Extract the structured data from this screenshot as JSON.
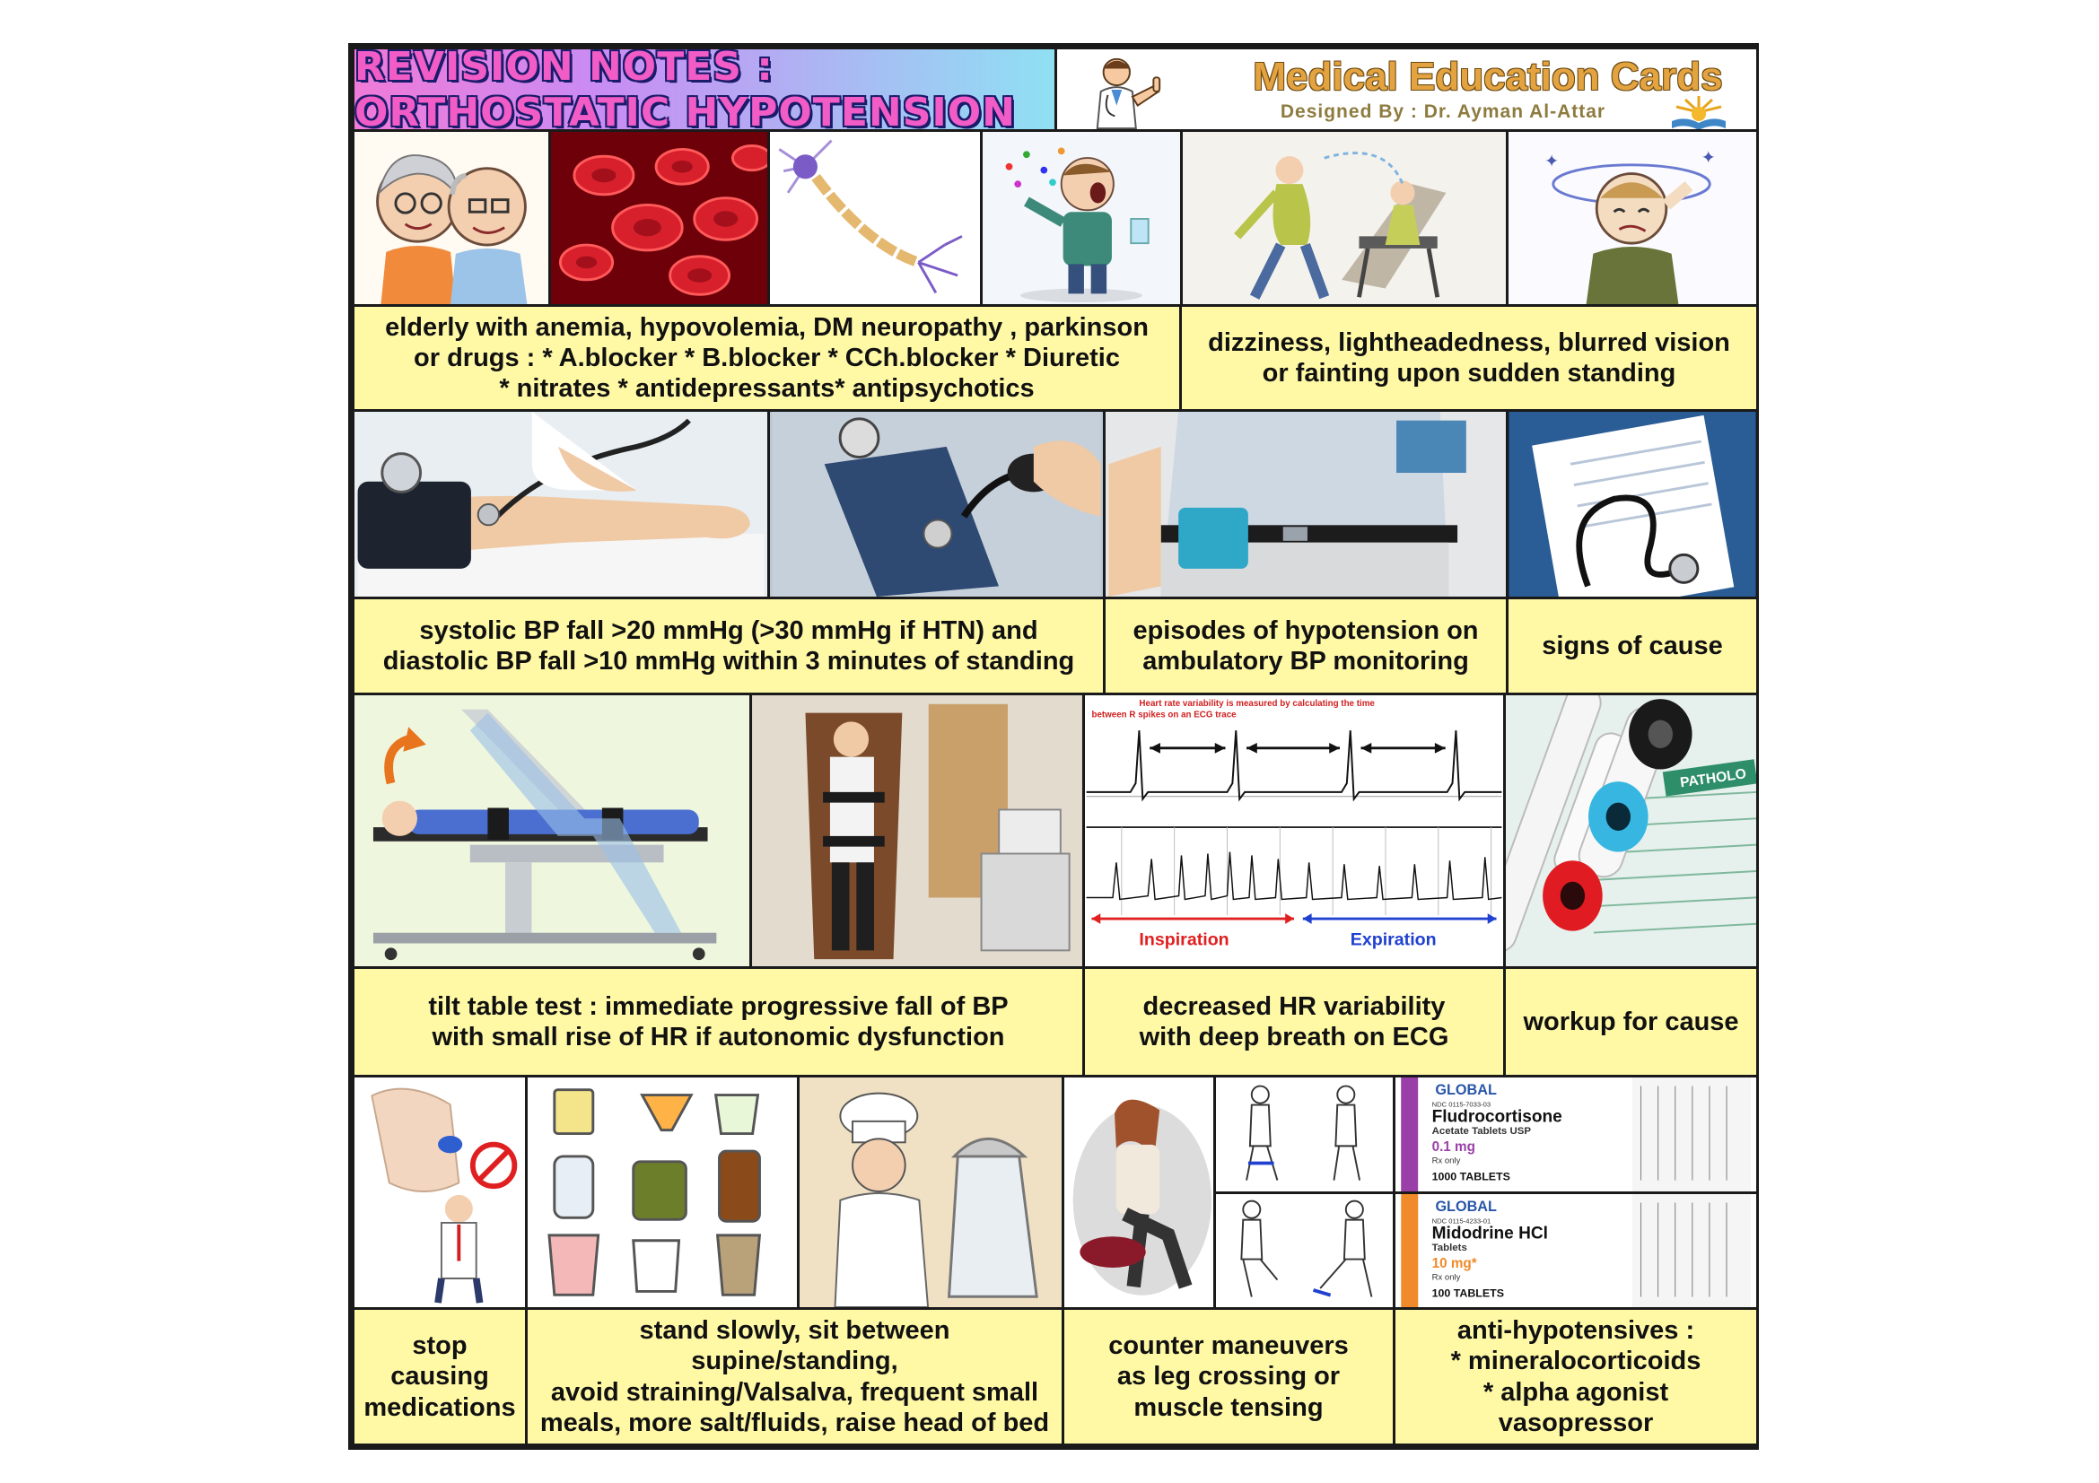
{
  "header": {
    "title": "REVISION NOTES : ORTHOSTATIC HYPOTENSION",
    "brand_title": "Medical Education Cards",
    "brand_subtitle": "Designed By : Dr. Ayman Al-Attar"
  },
  "row1": {
    "risk_text": "elderly with anemia, hypovolemia, DM neuropathy , parkinson\nor drugs : * A.blocker * B.blocker * CCh.blocker * Diuretic\n* nitrates * antidepressants* antipsychotics",
    "symptoms_text": "dizziness, lightheadedness, blurred vision\nor fainting upon sudden standing"
  },
  "row2": {
    "bp_criteria_text": "systolic BP fall >20 mmHg (>30 mmHg if HTN) and\ndiastolic BP fall >10 mmHg within 3 minutes of standing",
    "ambulatory_text": "episodes of hypotension on\nambulatory BP monitoring",
    "signs_text": "signs of cause"
  },
  "row3": {
    "tilt_text": "tilt table test : immediate progressive fall of BP\nwith small rise of HR if autonomic dysfunction",
    "hrv_text": "decreased HR variability\nwith deep breath on ECG",
    "workup_text": "workup for cause",
    "ecg": {
      "caption": "Heart rate variability is measured by calculating the time\nbetween R spikes on an ECG trace",
      "inspiration": "Inspiration",
      "expiration": "Expiration"
    },
    "tube_label": "PATHOLO"
  },
  "row4": {
    "stop_text": "stop\ncausing\nmedications",
    "lifestyle_text": "stand slowly, sit between supine/standing,\navoid straining/Valsalva, frequent small\nmeals, more salt/fluids, raise head of bed",
    "counter_text": "counter maneuvers\nas leg crossing or\nmuscle tensing",
    "antihypo_text": "anti-hypotensives :\n* mineralocorticoids\n* alpha agonist vasopressor",
    "drug1": {
      "brand": "GLOBAL",
      "ndc": "NDC 0115-7033-03",
      "name": "Fludrocortisone",
      "desc": "Acetate Tablets USP",
      "dose": "0.1 mg",
      "rx": "Rx only",
      "count": "1000 TABLETS"
    },
    "drug2": {
      "brand": "GLOBAL",
      "ndc": "NDC 0115-4233-01",
      "name": "Midodrine HCl",
      "desc": "Tablets",
      "dose": "10 mg*",
      "rx": "Rx only",
      "count": "100 TABLETS"
    }
  },
  "colors": {
    "card_bg": "#fff9a6",
    "border": "#1a1a1a",
    "title_pink": "#f25cc6",
    "brand_gold": "#e4a341"
  }
}
